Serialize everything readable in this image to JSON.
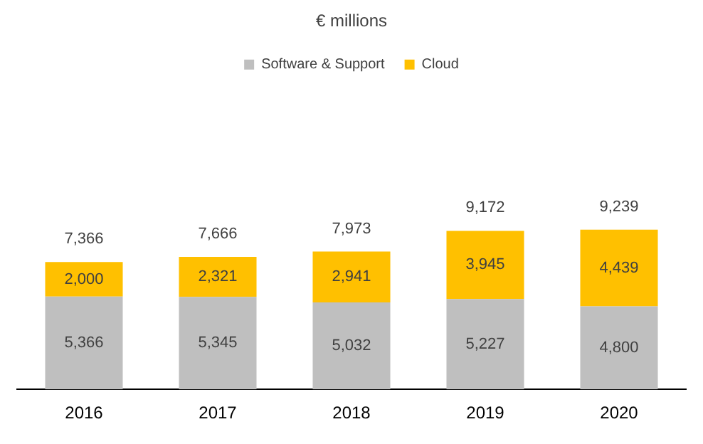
{
  "chart_data": {
    "type": "bar",
    "title": "€ millions",
    "stacked": true,
    "legend": "top",
    "grid": false,
    "tick_labels": "x",
    "categories": [
      "2016",
      "2017",
      "2018",
      "2019",
      "2020"
    ],
    "series": [
      {
        "name": "Software & Support",
        "color": "#bfbfbf",
        "values": [
          5366,
          5345,
          5032,
          5227,
          4800
        ],
        "value_labels": [
          "5,366",
          "5,345",
          "5,032",
          "5,227",
          "4,800"
        ]
      },
      {
        "name": "Cloud",
        "color": "#ffc000",
        "values": [
          2000,
          2321,
          2941,
          3945,
          4439
        ],
        "value_labels": [
          "2,000",
          "2,321",
          "2,941",
          "3,945",
          "4,439"
        ]
      }
    ],
    "totals": [
      "7,366",
      "7,666",
      "7,973",
      "9,172",
      "9,239"
    ]
  }
}
